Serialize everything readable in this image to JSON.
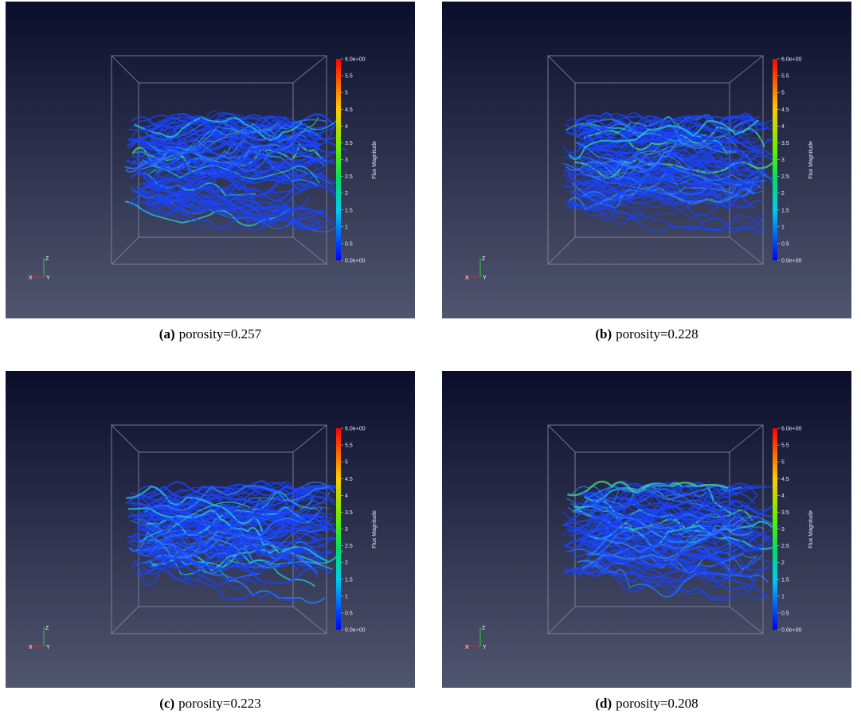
{
  "panels": [
    {
      "label": "(a)",
      "caption": "porosity=0.257",
      "colorbar": {
        "title": "Flux Magnitude",
        "ticks": [
          "6.0e+00",
          "5.5",
          "5",
          "4.5",
          "4",
          "3.5",
          "3",
          "2.5",
          "2",
          "1.5",
          "1",
          "0.5",
          "0.0e+00"
        ]
      },
      "axes": [
        "Z",
        "X",
        "Y"
      ]
    },
    {
      "label": "(b)",
      "caption": "porosity=0.228",
      "colorbar": {
        "title": "Flux Magnitude",
        "ticks": [
          "6.0e+00",
          "5.5",
          "5",
          "4.5",
          "4",
          "3.5",
          "3",
          "2.5",
          "2",
          "1.5",
          "1",
          "0.5",
          "0.0e+00"
        ]
      },
      "axes": [
        "Z",
        "X",
        "Y"
      ]
    },
    {
      "label": "(c)",
      "caption": "porosity=0.223",
      "colorbar": {
        "title": "Flux Magnitude",
        "ticks": [
          "6.0e+00",
          "5.5",
          "5",
          "4.5",
          "4",
          "3.5",
          "3",
          "2.5",
          "2",
          "1.5",
          "1",
          "0.5",
          "0.0e+00"
        ]
      },
      "axes": [
        "Z",
        "X",
        "Y"
      ]
    },
    {
      "label": "(d)",
      "caption": "porosity=0.208",
      "colorbar": {
        "title": "Flux Magnitude",
        "ticks": [
          "6.0e+00",
          "5.5",
          "5",
          "4.5",
          "4",
          "3.5",
          "3",
          "2.5",
          "2",
          "1.5",
          "1",
          "0.5",
          "0.0e+00"
        ]
      },
      "axes": [
        "Z",
        "X",
        "Y"
      ]
    }
  ]
}
